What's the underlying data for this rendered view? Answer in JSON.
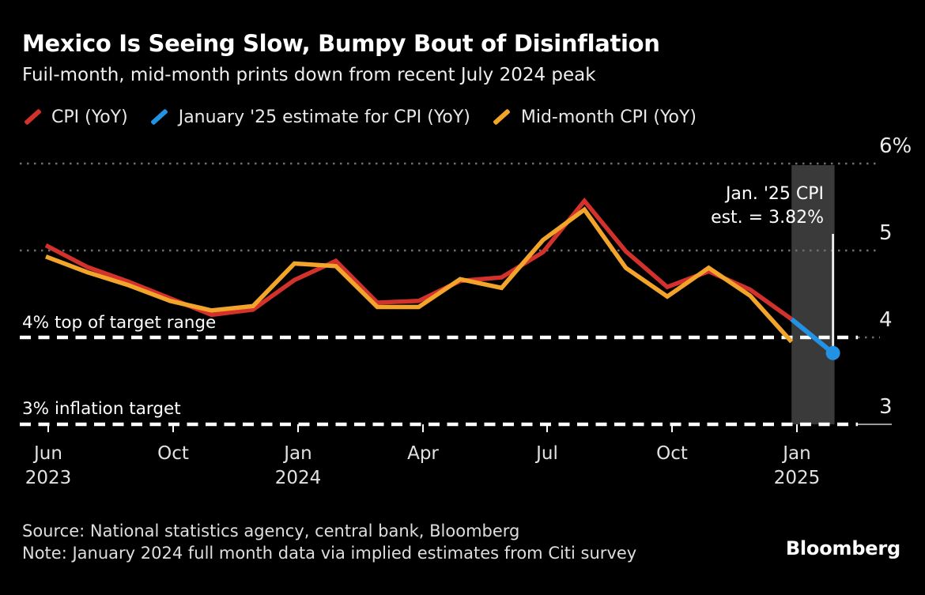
{
  "title": "Mexico Is Seeing Slow, Bumpy Bout of Disinflation",
  "subtitle": "Fuil-month, mid-month prints down from recent July 2024 peak",
  "legend": [
    {
      "label": "CPI (YoY)",
      "color": "#d2322b"
    },
    {
      "label": "January '25 estimate for CPI (YoY)",
      "color": "#2492e3"
    },
    {
      "label": "Mid-month CPI (YoY)",
      "color": "#f2a52a"
    }
  ],
  "annotations": {
    "estimate_line1": "Jan. '25 CPI",
    "estimate_line2": "est. = 3.82%",
    "top_of_range": "4% top of target range",
    "inflation_target": "3% inflation target"
  },
  "y_axis": {
    "labels": [
      "6%",
      "5",
      "4",
      "3"
    ],
    "values": [
      6,
      5,
      4,
      3
    ]
  },
  "x_axis": {
    "ticks": [
      {
        "month": "Jun",
        "year": "2023"
      },
      {
        "month": "Oct"
      },
      {
        "month": "Jan",
        "year": "2024"
      },
      {
        "month": "Apr"
      },
      {
        "month": "Jul"
      },
      {
        "month": "Oct"
      },
      {
        "month": "Jan",
        "year": "2025"
      }
    ]
  },
  "footer": {
    "source": "Source: National statistics agency, central bank, Bloomberg",
    "note": "Note: January 2024 full month data via implied estimates from Citi survey",
    "logo": "Bloomberg"
  },
  "chart_data": {
    "type": "line",
    "x": [
      "Jun 2023",
      "Jul 2023",
      "Aug 2023",
      "Sep 2023",
      "Oct 2023",
      "Nov 2023",
      "Dec 2023",
      "Jan 2024",
      "Feb 2024",
      "Mar 2024",
      "Apr 2024",
      "May 2024",
      "Jun 2024",
      "Jul 2024",
      "Aug 2024",
      "Sep 2024",
      "Oct 2024",
      "Nov 2024",
      "Dec 2024",
      "Jan 2025"
    ],
    "ylim": [
      3,
      6
    ],
    "y_unit": "%",
    "series": [
      {
        "name": "CPI (YoY)",
        "color": "#d2322b",
        "values": [
          5.06,
          4.81,
          4.64,
          4.45,
          4.26,
          4.32,
          4.66,
          4.88,
          4.4,
          4.42,
          4.65,
          4.69,
          4.98,
          5.57,
          4.99,
          4.58,
          4.76,
          4.55,
          4.21
        ]
      },
      {
        "name": "January '25 estimate for CPI (YoY)",
        "color": "#2492e3",
        "start_index": 18,
        "values": [
          4.21,
          3.82
        ]
      },
      {
        "name": "Mid-month CPI (YoY)",
        "color": "#f2a52a",
        "values": [
          4.93,
          4.75,
          4.6,
          4.42,
          4.31,
          4.36,
          4.85,
          4.82,
          4.35,
          4.35,
          4.67,
          4.57,
          5.12,
          5.47,
          4.8,
          4.47,
          4.8,
          4.48,
          3.95
        ]
      }
    ],
    "gridlines": [
      5,
      6
    ],
    "reference_lines": [
      {
        "value": 4,
        "label": "4% top of target range"
      },
      {
        "value": 3,
        "label": "3% inflation target"
      }
    ],
    "highlight_band": {
      "from_index": 18,
      "to_index": 19
    },
    "estimate_point": {
      "index": 19,
      "value": 3.82,
      "label": "Jan. '25 CPI est. = 3.82%"
    },
    "colors": {
      "background": "#000000",
      "band": "#3a3a3a",
      "grid": "#6e6e6e",
      "reference_line": "#ffffff"
    }
  }
}
